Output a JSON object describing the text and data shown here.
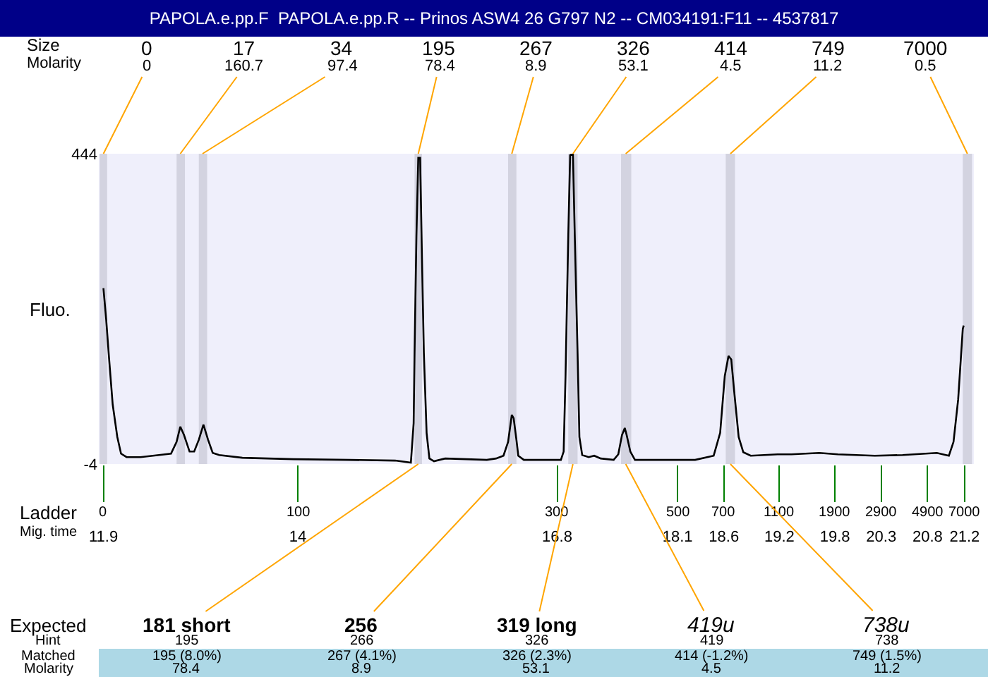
{
  "chart_data": {
    "type": "line",
    "title": "PAPOLA.e.pp.F  PAPOLA.e.pp.R -- Prinos ASW4 26 G797 N2 -- CM034191:F11 -- 4537817",
    "xlabel": "Ladder\nMig. time",
    "ylabel": "Fluo.",
    "color": "#000000",
    "x": [
      11.9,
      11.93,
      11.96,
      12.0,
      12.05,
      12.09,
      12.15,
      12.3,
      12.5,
      12.63,
      12.69,
      12.73,
      12.77,
      12.83,
      12.88,
      12.93,
      12.98,
      13.03,
      13.08,
      13.15,
      13.4,
      13.95,
      14.55,
      15.05,
      15.22,
      15.25,
      15.26,
      15.28,
      15.3,
      15.32,
      15.34,
      15.36,
      15.39,
      15.42,
      15.47,
      15.59,
      16.04,
      16.14,
      16.22,
      16.27,
      16.31,
      16.33,
      16.36,
      16.38,
      16.44,
      16.84,
      16.87,
      16.89,
      16.92,
      16.94,
      16.97,
      16.99,
      17.02,
      17.04,
      17.07,
      17.14,
      17.2,
      17.27,
      17.41,
      17.46,
      17.5,
      17.53,
      17.55,
      17.59,
      17.64,
      18.04,
      18.29,
      18.49,
      18.56,
      18.61,
      18.65,
      18.68,
      18.71,
      18.76,
      18.81,
      18.89,
      19.18,
      19.33,
      19.63,
      19.83,
      20.23,
      20.53,
      20.9,
      21.03,
      21.08,
      21.13,
      21.18,
      21.19
    ],
    "values": [
      250,
      204,
      150,
      82,
      35,
      11,
      6,
      6,
      9,
      11,
      28,
      50,
      38,
      14,
      14,
      31,
      53,
      31,
      12,
      9,
      5,
      3,
      2,
      1,
      -2,
      55,
      157,
      326,
      438,
      438,
      293,
      157,
      41,
      4,
      0,
      4,
      2,
      4,
      8,
      28,
      67,
      62,
      31,
      8,
      2,
      2,
      14,
      123,
      326,
      442,
      444,
      326,
      157,
      35,
      9,
      6,
      8,
      4,
      2,
      10,
      38,
      48,
      38,
      14,
      2,
      2,
      2,
      8,
      41,
      123,
      152,
      147,
      103,
      35,
      13,
      8,
      10,
      10,
      12,
      10,
      8,
      9,
      12,
      8,
      28,
      89,
      191,
      196
    ],
    "xlim": [
      11.85,
      21.3
    ],
    "ylim": [
      -4,
      444
    ],
    "yticks": [
      -4,
      444
    ],
    "xticks": [
      11.9,
      14,
      16.8,
      18.1,
      18.6,
      19.2,
      19.8,
      20.3,
      20.8,
      21.2
    ],
    "bands": [
      {
        "axis": "x",
        "from": 11.86,
        "to": 11.94,
        "color": "#d3d3e0"
      },
      {
        "axis": "x",
        "from": 12.69,
        "to": 12.78,
        "color": "#d3d3e0"
      },
      {
        "axis": "x",
        "from": 12.93,
        "to": 13.02,
        "color": "#d3d3e0"
      },
      {
        "axis": "x",
        "from": 15.26,
        "to": 15.34,
        "color": "#d3d3e0"
      },
      {
        "axis": "x",
        "from": 16.27,
        "to": 16.36,
        "color": "#d3d3e0"
      },
      {
        "axis": "x",
        "from": 16.92,
        "to": 17.02,
        "color": "#d3d3e0"
      },
      {
        "axis": "x",
        "from": 17.49,
        "to": 17.6,
        "color": "#d3d3e0"
      },
      {
        "axis": "x",
        "from": 18.62,
        "to": 18.72,
        "color": "#d3d3e0"
      },
      {
        "axis": "x",
        "from": 21.18,
        "to": 21.28,
        "color": "#d3d3e0"
      }
    ],
    "annotations": [
      "Size\nMolarity",
      "0\n100\n300\n500\n700\n1100\n1900\n2900\n4900\n7000",
      "Expected\nHint\nMatched\nMolarity",
      {
        "text": "0\n0",
        "x": 11.9,
        "y": 444
      },
      {
        "text": "17\n160.7",
        "x": 12.73,
        "y": 444
      },
      {
        "text": "34\n97.4",
        "x": 12.97,
        "y": 444
      },
      {
        "text": "195\n78.4",
        "x": 15.3,
        "y": 444
      },
      {
        "text": "267\n8.9",
        "x": 16.31,
        "y": 444
      },
      {
        "text": "326\n53.1",
        "x": 16.97,
        "y": 444
      },
      {
        "text": "414\n4.5",
        "x": 17.54,
        "y": 444
      },
      {
        "text": "749\n11.2",
        "x": 18.67,
        "y": 444
      },
      {
        "text": "7000\n0.5",
        "x": 21.23,
        "y": 444
      },
      {
        "text": "181 short\n195\n195 (8.0%)\n78.4",
        "x": 15.3,
        "y": -4
      },
      {
        "text": "256\n266\n267 (4.1%)\n8.9",
        "x": 16.31,
        "y": -4
      },
      {
        "text": "319 long\n326\n326 (2.3%)\n53.1",
        "x": 16.97,
        "y": -4
      },
      {
        "text": "419u\n419\n414 (-1.2%)\n4.5",
        "x": 17.54,
        "y": -4
      },
      {
        "text": "738u\n738\n749 (1.5%)\n11.2",
        "x": 18.67,
        "y": -4
      }
    ]
  }
}
